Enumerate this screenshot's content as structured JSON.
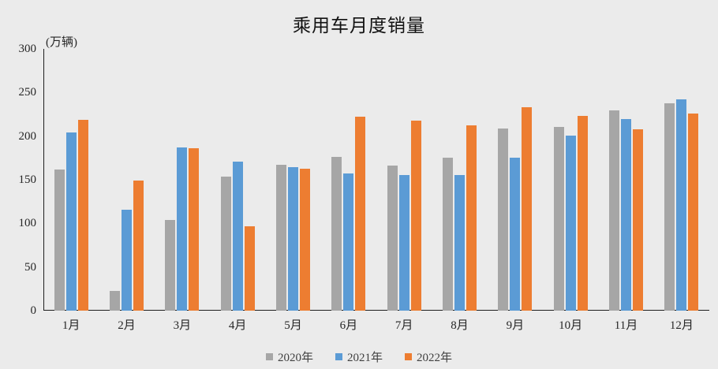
{
  "colors": {
    "background": "#ebebeb",
    "axis": "#1f1f1f",
    "tick_text": "#262626",
    "legend_text": "#404040",
    "title_text": "#111111"
  },
  "chart_data": {
    "type": "bar",
    "title": "乘用车月度销量",
    "ylabel": "(万辆)",
    "xlabel": "",
    "categories": [
      "1月",
      "2月",
      "3月",
      "4月",
      "5月",
      "6月",
      "7月",
      "8月",
      "9月",
      "10月",
      "11月",
      "12月"
    ],
    "series": [
      {
        "name": "2020年",
        "color": "#a6a6a6",
        "values": [
          161.4,
          22.4,
          104.3,
          153.6,
          167.4,
          176.4,
          166.5,
          175.5,
          208.8,
          211.0,
          229.7,
          237.5
        ]
      },
      {
        "name": "2021年",
        "color": "#5b9bd5",
        "values": [
          204.5,
          115.6,
          187.4,
          170.4,
          164.6,
          156.9,
          155.1,
          155.2,
          175.1,
          200.7,
          219.2,
          242.2
        ]
      },
      {
        "name": "2022年",
        "color": "#ed7d31",
        "values": [
          218.6,
          148.7,
          186.4,
          96.5,
          162.3,
          222.2,
          217.4,
          212.5,
          233.2,
          223.1,
          207.5,
          226.3
        ]
      }
    ],
    "ylim": [
      0,
      300
    ],
    "yticks": [
      0,
      50,
      100,
      150,
      200,
      250,
      300
    ],
    "grid": false,
    "legend_position": "bottom"
  }
}
